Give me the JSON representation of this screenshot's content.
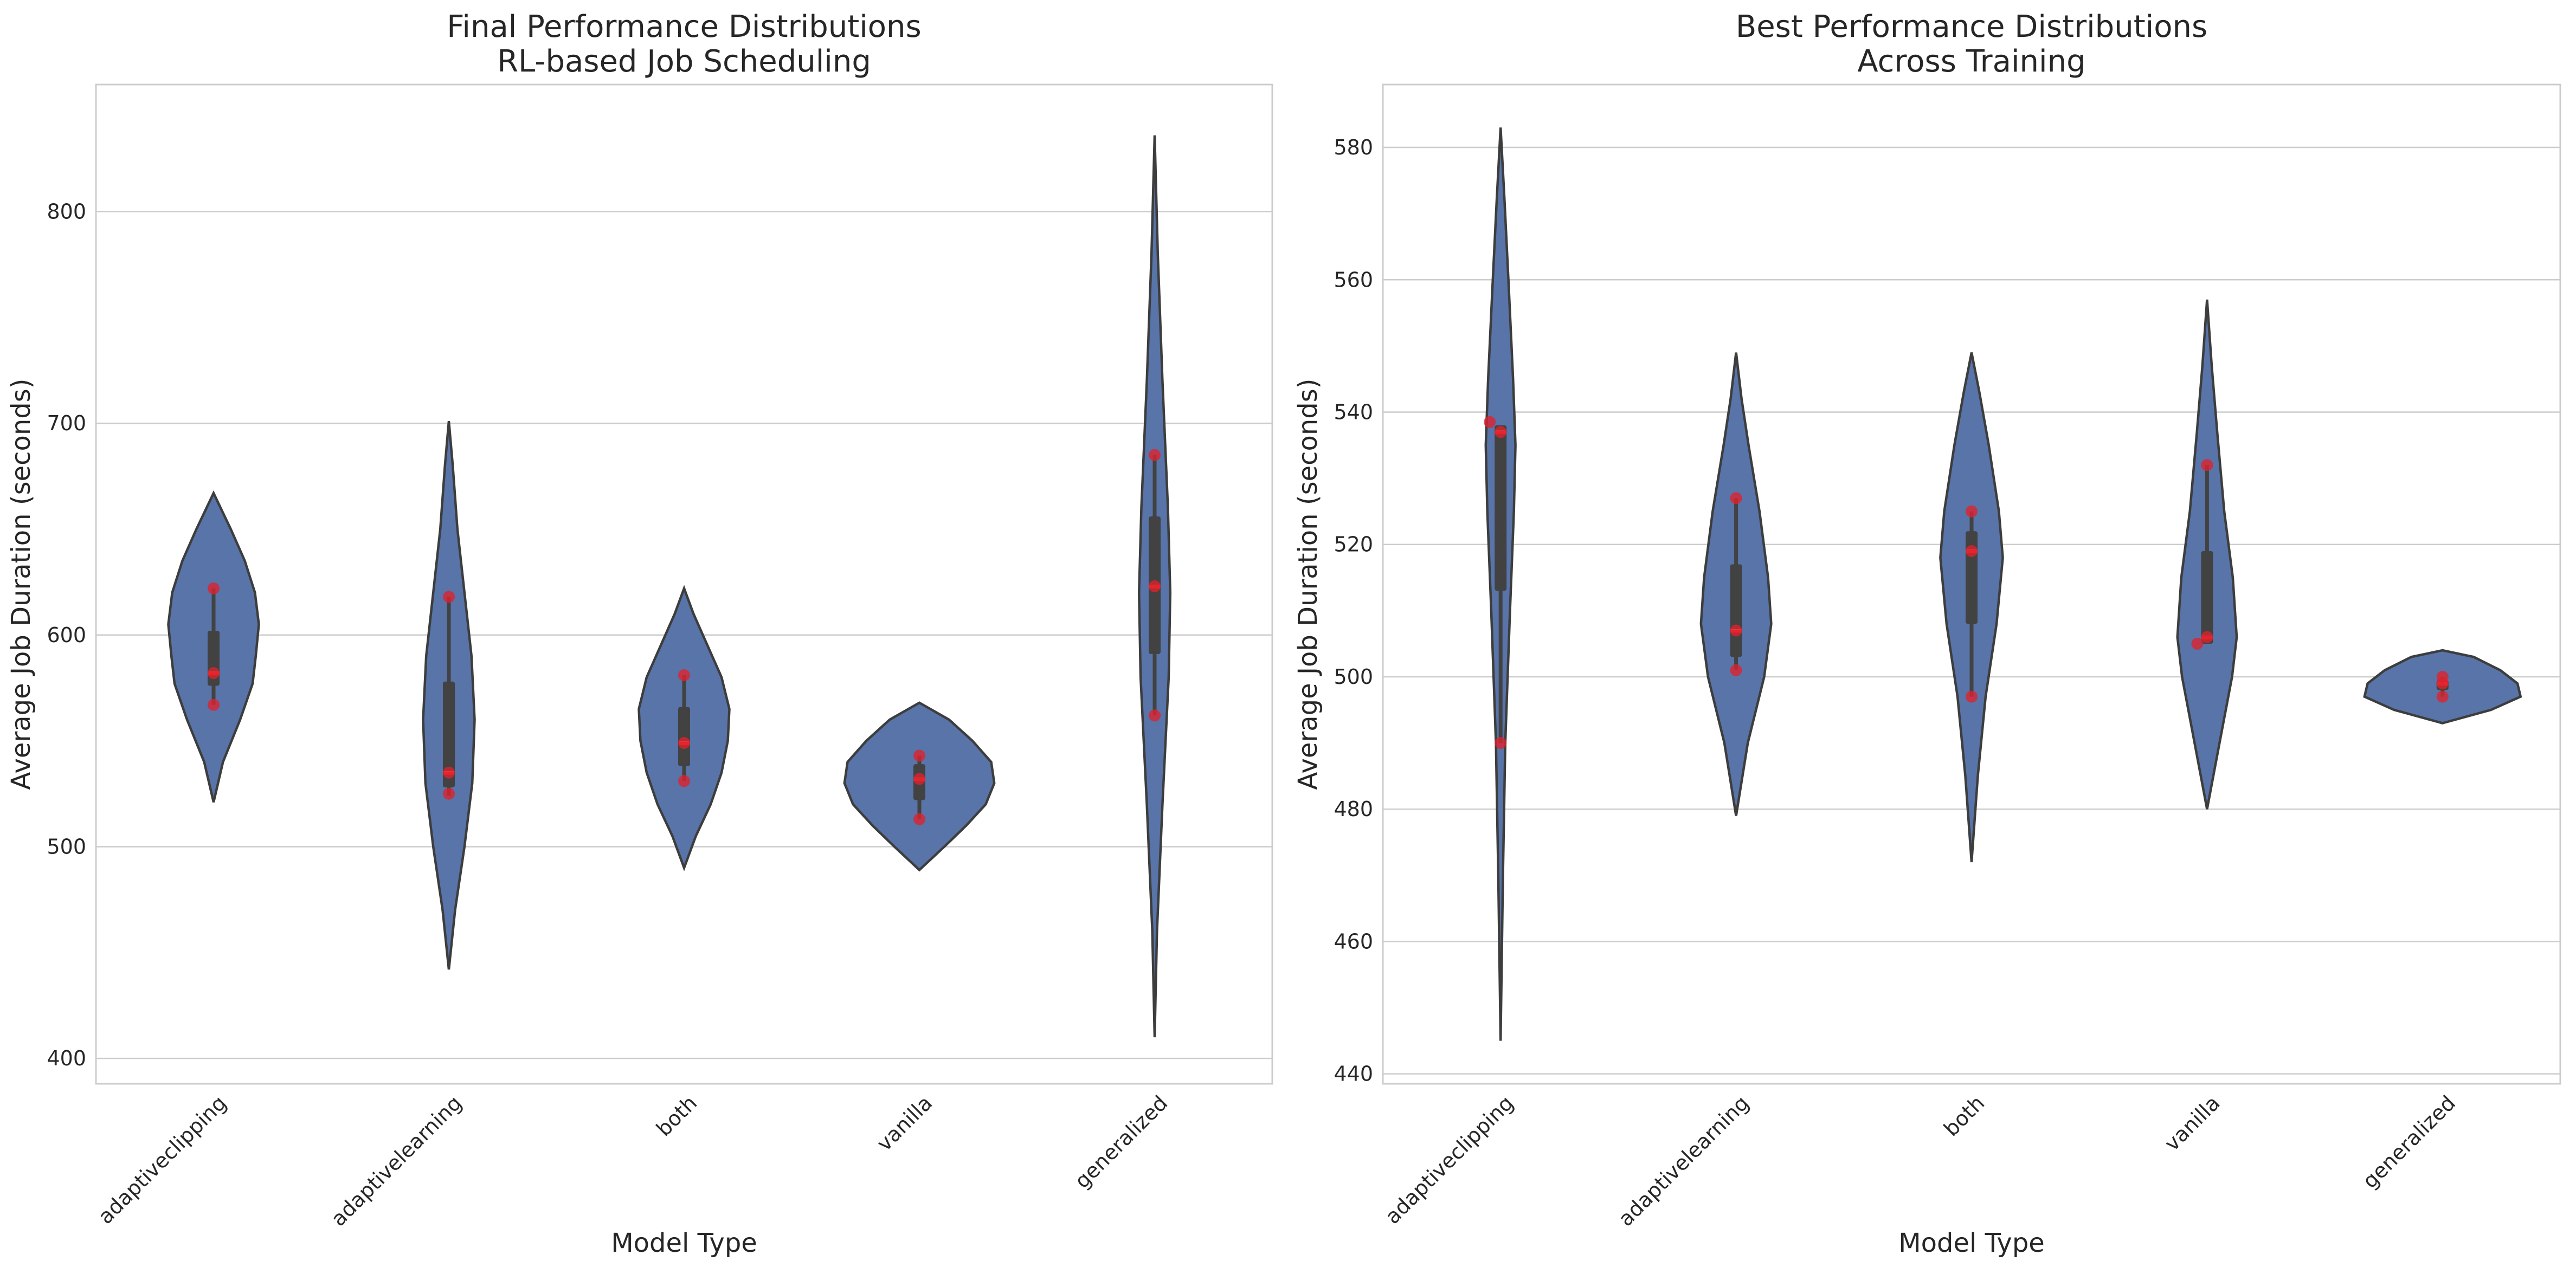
{
  "chart_data": [
    {
      "type": "violin",
      "title_lines": [
        "Final Performance Distributions",
        "RL-based Job Scheduling"
      ],
      "xlabel": "Model Type",
      "ylabel": "Average Job Duration (seconds)",
      "ylim": [
        388,
        860
      ],
      "yticks": [
        400,
        500,
        600,
        700,
        800
      ],
      "grid": "horizontal",
      "categories": [
        "adaptiveclipping",
        "adaptivelearning",
        "both",
        "vanilla",
        "generalized"
      ],
      "violins": [
        {
          "category": "adaptiveclipping",
          "min_extent": 521,
          "max_extent": 667,
          "shape": [
            [
              521,
              0
            ],
            [
              540,
              0.12
            ],
            [
              560,
              0.34
            ],
            [
              577,
              0.5
            ],
            [
              590,
              0.54
            ],
            [
              605,
              0.58
            ],
            [
              620,
              0.53
            ],
            [
              635,
              0.4
            ],
            [
              650,
              0.22
            ],
            [
              667,
              0
            ]
          ],
          "q1": 576,
          "median": 582,
          "q3": 602,
          "whisker_low": 567,
          "whisker_high": 622,
          "mean": 582,
          "points": [
            567,
            582,
            622
          ]
        },
        {
          "category": "adaptivelearning",
          "min_extent": 442,
          "max_extent": 701,
          "shape": [
            [
              442,
              0
            ],
            [
              470,
              0.08
            ],
            [
              500,
              0.2
            ],
            [
              530,
              0.3
            ],
            [
              560,
              0.33
            ],
            [
              590,
              0.29
            ],
            [
              620,
              0.2
            ],
            [
              650,
              0.11
            ],
            [
              680,
              0.05
            ],
            [
              701,
              0
            ]
          ],
          "q1": 528,
          "median": 535,
          "q3": 578,
          "whisker_low": 524,
          "whisker_high": 618,
          "mean": 535,
          "points": [
            525,
            535,
            618
          ]
        },
        {
          "category": "both",
          "min_extent": 490,
          "max_extent": 622,
          "shape": [
            [
              490,
              0
            ],
            [
              505,
              0.15
            ],
            [
              520,
              0.34
            ],
            [
              535,
              0.48
            ],
            [
              550,
              0.56
            ],
            [
              565,
              0.58
            ],
            [
              580,
              0.48
            ],
            [
              595,
              0.3
            ],
            [
              610,
              0.12
            ],
            [
              622,
              0
            ]
          ],
          "q1": 538,
          "median": 549,
          "q3": 566,
          "whisker_low": 531,
          "whisker_high": 581,
          "mean": 549,
          "points": [
            531,
            549,
            581
          ]
        },
        {
          "category": "vanilla",
          "min_extent": 489,
          "max_extent": 568,
          "shape": [
            [
              489,
              0
            ],
            [
              500,
              0.32
            ],
            [
              510,
              0.6
            ],
            [
              520,
              0.85
            ],
            [
              530,
              0.96
            ],
            [
              540,
              0.92
            ],
            [
              550,
              0.68
            ],
            [
              560,
              0.38
            ],
            [
              568,
              0
            ]
          ],
          "q1": 522,
          "median": 532,
          "q3": 539,
          "whisker_low": 513,
          "whisker_high": 543,
          "mean": 532,
          "points": [
            513,
            532,
            543
          ]
        },
        {
          "category": "generalized",
          "min_extent": 410,
          "max_extent": 836,
          "shape": [
            [
              410,
              0
            ],
            [
              460,
              0.03
            ],
            [
              520,
              0.1
            ],
            [
              580,
              0.18
            ],
            [
              620,
              0.2
            ],
            [
              660,
              0.17
            ],
            [
              720,
              0.1
            ],
            [
              780,
              0.04
            ],
            [
              836,
              0
            ]
          ],
          "q1": 591,
          "median": 623,
          "q3": 656,
          "whisker_low": 562,
          "whisker_high": 685,
          "mean": 623,
          "points": [
            562,
            623,
            685
          ]
        }
      ]
    },
    {
      "type": "violin",
      "title_lines": [
        "Best Performance Distributions",
        "Across Training"
      ],
      "xlabel": "Model Type",
      "ylabel": "Average Job Duration (seconds)",
      "ylim": [
        438.5,
        589.5
      ],
      "yticks": [
        440,
        460,
        480,
        500,
        520,
        540,
        560,
        580
      ],
      "grid": "horizontal",
      "categories": [
        "adaptiveclipping",
        "adaptivelearning",
        "both",
        "vanilla",
        "generalized"
      ],
      "violins": [
        {
          "category": "adaptiveclipping",
          "min_extent": 445,
          "max_extent": 583,
          "shape": [
            [
              445,
              0
            ],
            [
              470,
              0.03
            ],
            [
              490,
              0.06
            ],
            [
              510,
              0.12
            ],
            [
              525,
              0.17
            ],
            [
              535,
              0.19
            ],
            [
              545,
              0.16
            ],
            [
              560,
              0.1
            ],
            [
              572,
              0.05
            ],
            [
              583,
              0
            ]
          ],
          "q1": 513,
          "median": 537,
          "q3": 538,
          "whisker_low": 490,
          "whisker_high": 538,
          "mean": 537,
          "points": [
            490,
            537,
            538.5
          ]
        },
        {
          "category": "adaptivelearning",
          "min_extent": 479,
          "max_extent": 549,
          "shape": [
            [
              479,
              0
            ],
            [
              490,
              0.15
            ],
            [
              500,
              0.36
            ],
            [
              508,
              0.45
            ],
            [
              515,
              0.41
            ],
            [
              525,
              0.3
            ],
            [
              535,
              0.16
            ],
            [
              542,
              0.07
            ],
            [
              549,
              0
            ]
          ],
          "q1": 503,
          "median": 507,
          "q3": 517,
          "whisker_low": 501,
          "whisker_high": 527,
          "mean": 507,
          "points": [
            501,
            507,
            527
          ]
        },
        {
          "category": "both",
          "min_extent": 472,
          "max_extent": 549,
          "shape": [
            [
              472,
              0
            ],
            [
              485,
              0.08
            ],
            [
              497,
              0.18
            ],
            [
              508,
              0.32
            ],
            [
              518,
              0.4
            ],
            [
              525,
              0.35
            ],
            [
              535,
              0.22
            ],
            [
              543,
              0.1
            ],
            [
              549,
              0
            ]
          ],
          "q1": 508,
          "median": 519,
          "q3": 522,
          "whisker_low": 497,
          "whisker_high": 525,
          "mean": 519,
          "points": [
            497,
            519,
            525
          ]
        },
        {
          "category": "vanilla",
          "min_extent": 480,
          "max_extent": 557,
          "shape": [
            [
              480,
              0
            ],
            [
              490,
              0.16
            ],
            [
              500,
              0.32
            ],
            [
              506,
              0.38
            ],
            [
              515,
              0.33
            ],
            [
              525,
              0.22
            ],
            [
              537,
              0.13
            ],
            [
              547,
              0.06
            ],
            [
              557,
              0
            ]
          ],
          "q1": 505,
          "median": 506,
          "q3": 519,
          "whisker_low": 505,
          "whisker_high": 532,
          "mean": 506,
          "points": [
            505,
            506,
            532
          ]
        },
        {
          "category": "generalized",
          "min_extent": 493,
          "max_extent": 504,
          "shape": [
            [
              493,
              0
            ],
            [
              495,
              0.62
            ],
            [
              497,
              1.0
            ],
            [
              499,
              0.96
            ],
            [
              501,
              0.74
            ],
            [
              503,
              0.4
            ],
            [
              504,
              0
            ]
          ],
          "q1": 498,
          "median": 499,
          "q3": 499.5,
          "whisker_low": 497,
          "whisker_high": 500,
          "mean": 499,
          "points": [
            497,
            499,
            500
          ]
        }
      ]
    }
  ]
}
